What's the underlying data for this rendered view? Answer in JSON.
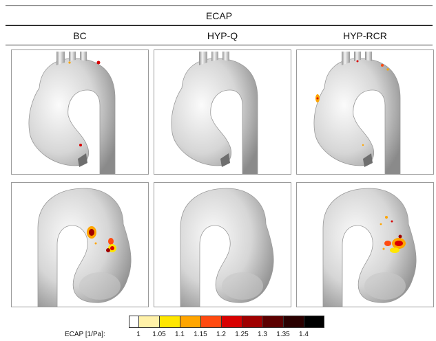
{
  "header": {
    "title": "ECAP",
    "columns": [
      "BC",
      "HYP-Q",
      "HYP-RCR"
    ]
  },
  "colorbar": {
    "title": "ECAP [1/Pa]:",
    "ticks": [
      "1",
      "1.05",
      "1.1",
      "1.15",
      "1.2",
      "1.25",
      "1.3",
      "1.35",
      "1.4"
    ],
    "colors": [
      "#ffffff",
      "#fff1a8",
      "#ffe600",
      "#ffa500",
      "#ff4a10",
      "#d80000",
      "#a00000",
      "#5c0000",
      "#2a0000",
      "#000000"
    ]
  },
  "colors": {
    "surface_light": "#f2f2f2",
    "surface_mid": "#b9b9b9",
    "surface_dark": "#7a7a7a",
    "cut_plane": "#6e6e6e"
  }
}
